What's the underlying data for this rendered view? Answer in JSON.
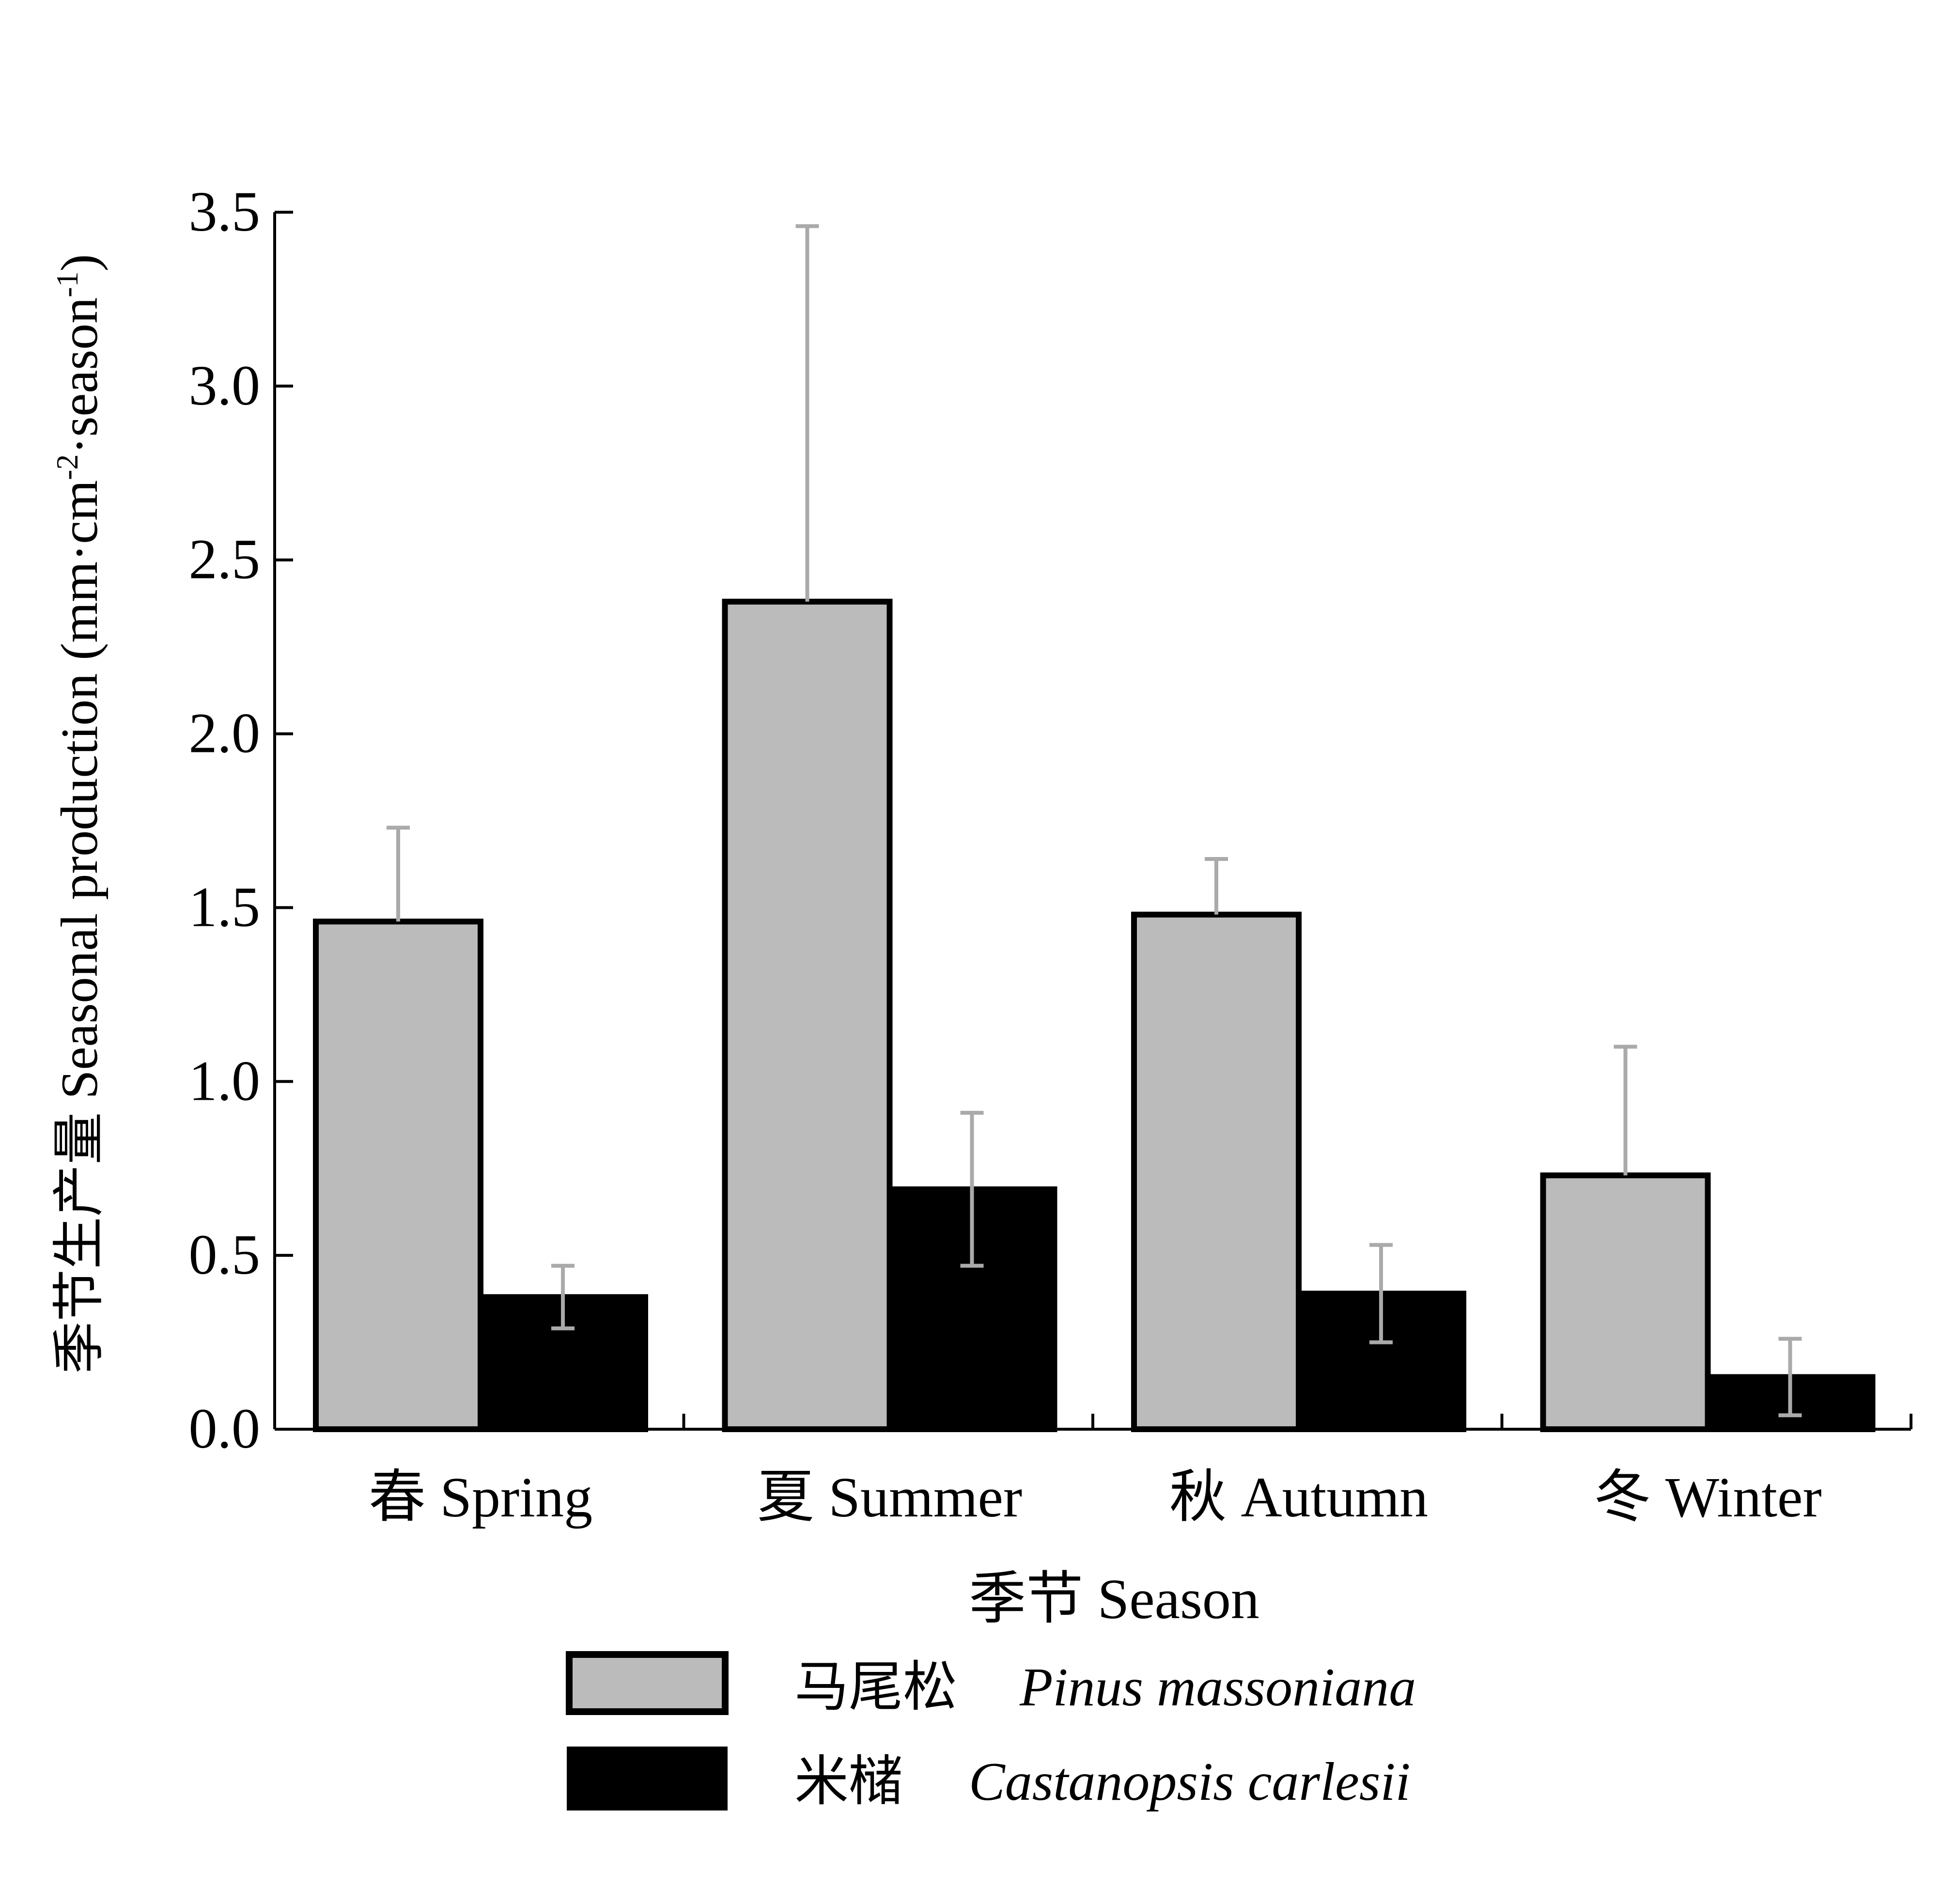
{
  "chart_data": {
    "type": "bar",
    "ylabel": "季节生产量 Seasonal production (mm·cm",
    "ylabel_sup1": "-2",
    "ylabel_mid": "·season",
    "ylabel_sup2": "-1",
    "ylabel_end": ")",
    "xlabel": "季节  Season",
    "ylim": [
      0,
      3.5
    ],
    "yticks": [
      "0.0",
      "0.5",
      "1.0",
      "1.5",
      "2.0",
      "2.5",
      "3.0",
      "3.5"
    ],
    "categories": [
      "春 Spring",
      "夏 Summer",
      "秋 Autumn",
      "冬 Winter"
    ],
    "series": [
      {
        "name_cn": "马尾松",
        "name": "Pinus massoniana",
        "color": "#bbbbbb",
        "values": [
          1.46,
          2.38,
          1.48,
          0.73
        ],
        "errors": [
          0.27,
          1.08,
          0.16,
          0.37
        ]
      },
      {
        "name_cn": "米槠",
        "name": "Castanopsis carlesii",
        "color": "#000000",
        "values": [
          0.38,
          0.69,
          0.39,
          0.15
        ],
        "errors": [
          0.09,
          0.22,
          0.14,
          0.11
        ]
      }
    ],
    "error_bar_color": "#aaaaaa",
    "legend_position": "bottom-center",
    "grid": false
  }
}
